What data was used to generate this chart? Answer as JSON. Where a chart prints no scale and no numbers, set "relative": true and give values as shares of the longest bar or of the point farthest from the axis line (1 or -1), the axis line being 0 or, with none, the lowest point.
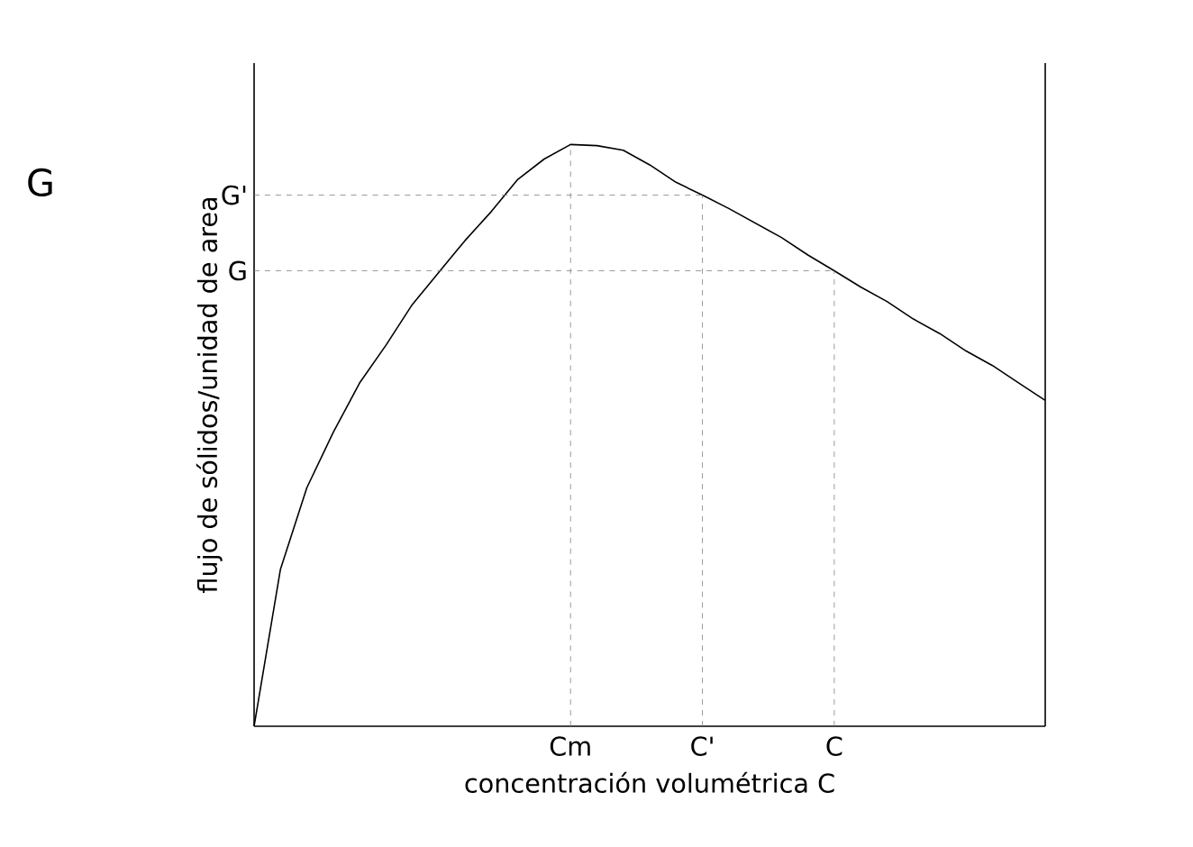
{
  "chart_data": {
    "type": "line",
    "relative": true,
    "xlabel": "concentración volumétrica C",
    "ylabel": "flujo de sólidos/unidad de area",
    "annotations": [
      "G"
    ],
    "categories": [
      null,
      null,
      null,
      null,
      null,
      null,
      null,
      null,
      null,
      null,
      null,
      null,
      "Cm",
      null,
      null,
      null,
      null,
      "C'",
      null,
      null,
      null,
      null,
      "C",
      null,
      null,
      null,
      null,
      null,
      null,
      null,
      null
    ],
    "series": [
      {
        "color": "#000000",
        "values": [
          0,
          0.27,
          0.41,
          0.505,
          0.59,
          0.655,
          0.725,
          0.78,
          0.835,
          0.885,
          0.94,
          0.975,
          1.0,
          0.998,
          0.99,
          0.965,
          0.935,
          0.913,
          0.89,
          0.865,
          0.84,
          0.81,
          0.783,
          0.755,
          0.73,
          0.7,
          0.675,
          0.645,
          0.62,
          0.59,
          0.56
        ]
      }
    ],
    "ref_lines": [
      {
        "axis": "x",
        "value": "Cm",
        "line_style": "dashed"
      },
      {
        "axis": "x",
        "value": "C'",
        "line_style": "dashed"
      },
      {
        "axis": "x",
        "value": "C",
        "line_style": "dashed"
      },
      {
        "axis": "y",
        "value": 0.913,
        "label": "G'",
        "line_style": "dashed"
      },
      {
        "axis": "y",
        "value": 0.783,
        "label": "G",
        "line_style": "dashed"
      }
    ]
  }
}
